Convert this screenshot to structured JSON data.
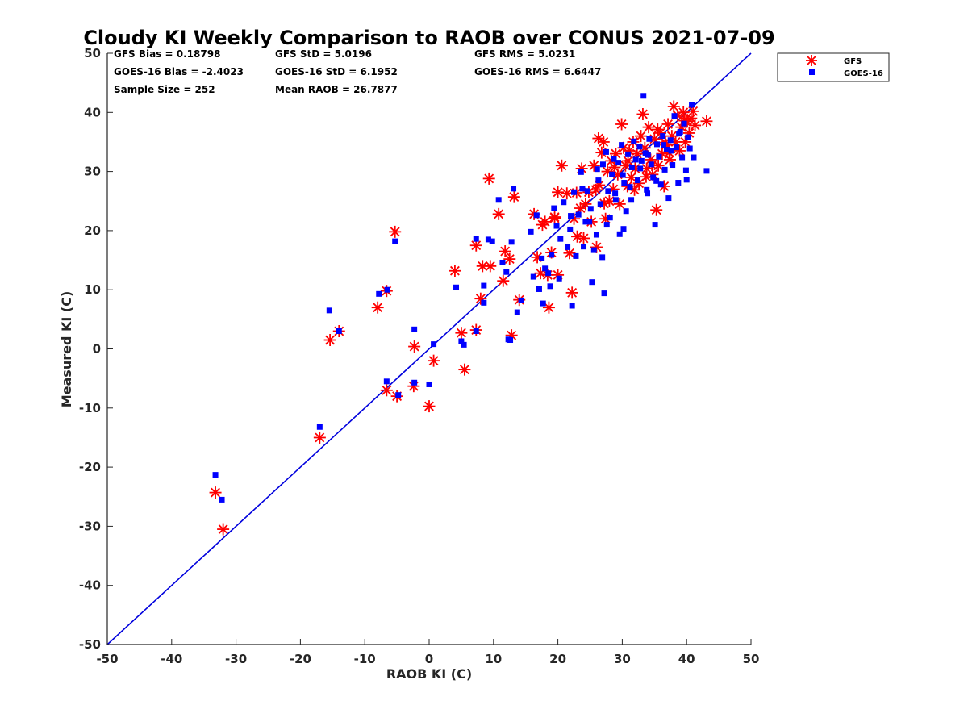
{
  "chart_data": {
    "type": "scatter",
    "title": "Cloudy KI Weekly Comparison to RAOB over CONUS 2021-07-09",
    "xlabel": "RAOB KI (C)",
    "ylabel": "Measured KI (C)",
    "xlim": [
      -50,
      50
    ],
    "ylim": [
      -50,
      50
    ],
    "xticks": [
      "-50",
      "-40",
      "-30",
      "-20",
      "-10",
      "0",
      "10",
      "20",
      "30",
      "40",
      "50"
    ],
    "yticks": [
      "-50",
      "-40",
      "-30",
      "-20",
      "-10",
      "0",
      "10",
      "20",
      "30",
      "40",
      "50"
    ],
    "grid": false,
    "legend_position": "top-right outside",
    "reference_line": {
      "name": "1:1 line",
      "color": "#0000dd",
      "from": [
        -50,
        -50
      ],
      "to": [
        50,
        50
      ]
    },
    "stats": [
      "GFS Bias = 0.18798",
      "GFS StD = 5.0196",
      "GFS RMS = 5.0231",
      "GOES-16 Bias = -2.4023",
      "GOES-16 StD = 6.1952",
      "GOES-16 RMS = 6.6447",
      "Sample Size = 252",
      "Mean RAOB = 26.7877"
    ],
    "series": [
      {
        "name": "GFS",
        "marker": "asterisk",
        "color": "#ff0000",
        "points": [
          [
            -33.2,
            -24.3
          ],
          [
            -32,
            -30.5
          ],
          [
            -17,
            -15
          ],
          [
            -15.4,
            1.5
          ],
          [
            -14,
            3
          ],
          [
            -8,
            7
          ],
          [
            -6.6,
            9.8
          ],
          [
            -6.6,
            -7
          ],
          [
            -5,
            -8
          ],
          [
            -5.3,
            19.8
          ],
          [
            -2.4,
            -6.3
          ],
          [
            -2.3,
            0.4
          ],
          [
            0,
            -9.7
          ],
          [
            0.7,
            -2
          ],
          [
            4,
            13.2
          ],
          [
            5,
            2.7
          ],
          [
            5.5,
            -3.5
          ],
          [
            7.3,
            3.2
          ],
          [
            7.3,
            17.5
          ],
          [
            8,
            8.5
          ],
          [
            8.3,
            14
          ],
          [
            9.3,
            28.8
          ],
          [
            9.5,
            14
          ],
          [
            10.8,
            22.8
          ],
          [
            11.5,
            11.5
          ],
          [
            11.8,
            16.5
          ],
          [
            12.5,
            15.2
          ],
          [
            12.8,
            2.3
          ],
          [
            13.2,
            25.7
          ],
          [
            14,
            8.3
          ],
          [
            16.3,
            22.8
          ],
          [
            16.8,
            15.5
          ],
          [
            17.3,
            12.8
          ],
          [
            17.6,
            21
          ],
          [
            18,
            21.5
          ],
          [
            18.4,
            12.5
          ],
          [
            18.6,
            7
          ],
          [
            19,
            16.3
          ],
          [
            19.5,
            22.3
          ],
          [
            20,
            12.5
          ],
          [
            20,
            26.5
          ],
          [
            20.6,
            31
          ],
          [
            21.4,
            26.3
          ],
          [
            21.8,
            16.2
          ],
          [
            22.2,
            9.5
          ],
          [
            22.5,
            22
          ],
          [
            23,
            19
          ],
          [
            23.7,
            30.5
          ],
          [
            24,
            18.7
          ],
          [
            24.3,
            24.5
          ],
          [
            24.8,
            26.5
          ],
          [
            25.2,
            21.5
          ],
          [
            25.6,
            31
          ],
          [
            26,
            17.2
          ],
          [
            26.4,
            27.7
          ],
          [
            26.8,
            33.2
          ],
          [
            27.1,
            35
          ],
          [
            27.4,
            22
          ],
          [
            27.7,
            30
          ],
          [
            28,
            25
          ],
          [
            28.3,
            31.8
          ],
          [
            28.6,
            27
          ],
          [
            29,
            33
          ],
          [
            29.3,
            29.5
          ],
          [
            29.6,
            24.5
          ],
          [
            29.9,
            38
          ],
          [
            30.2,
            34
          ],
          [
            30.5,
            31
          ],
          [
            30.8,
            27.5
          ],
          [
            31.1,
            33.5
          ],
          [
            31.4,
            29
          ],
          [
            31.7,
            35
          ],
          [
            32,
            30.5
          ],
          [
            32.3,
            33
          ],
          [
            32.6,
            28
          ],
          [
            32.9,
            36
          ],
          [
            33.2,
            39.7
          ],
          [
            33.5,
            34
          ],
          [
            33.8,
            30.5
          ],
          [
            34.1,
            37.5
          ],
          [
            34.4,
            32
          ],
          [
            34.7,
            29.5
          ],
          [
            35,
            35.5
          ],
          [
            35.3,
            23.5
          ],
          [
            35.6,
            31
          ],
          [
            35.9,
            36.5
          ],
          [
            36.2,
            33
          ],
          [
            36.5,
            27.5
          ],
          [
            36.8,
            34.5
          ],
          [
            37.1,
            38
          ],
          [
            37.4,
            32
          ],
          [
            37.7,
            36
          ],
          [
            38,
            41
          ],
          [
            38.3,
            35
          ],
          [
            38.6,
            39.5
          ],
          [
            38.9,
            33.5
          ],
          [
            39.2,
            37.5
          ],
          [
            39.5,
            40
          ],
          [
            39.8,
            35
          ],
          [
            40.1,
            38.5
          ],
          [
            40.4,
            36.5
          ],
          [
            40.7,
            39
          ],
          [
            41,
            40.2
          ],
          [
            41.3,
            37.8
          ],
          [
            43.1,
            38.5
          ],
          [
            26.3,
            35.6
          ],
          [
            28.8,
            30.7
          ],
          [
            30.9,
            31.8
          ],
          [
            34.6,
            31.1
          ],
          [
            36.7,
            34.9
          ],
          [
            23.5,
            23.8
          ],
          [
            25.9,
            26.9
          ],
          [
            27.2,
            24.6
          ],
          [
            19.5,
            22.1
          ],
          [
            22.9,
            26.4
          ],
          [
            31.9,
            26.9
          ],
          [
            33.7,
            29.1
          ],
          [
            37.3,
            33.2
          ],
          [
            39.7,
            38.6
          ],
          [
            35.5,
            37.1
          ]
        ]
      },
      {
        "name": "GOES-16",
        "marker": "square",
        "color": "#0000ff",
        "points": [
          [
            -33.2,
            -21.3
          ],
          [
            -32.2,
            -25.5
          ],
          [
            -17,
            -13.2
          ],
          [
            -15.5,
            6.5
          ],
          [
            -14,
            3
          ],
          [
            -7.8,
            9.3
          ],
          [
            -6.5,
            10
          ],
          [
            -6.6,
            -5.5
          ],
          [
            -5.3,
            18.2
          ],
          [
            -4.8,
            -7.8
          ],
          [
            -2.3,
            3.3
          ],
          [
            -2.3,
            -5.7
          ],
          [
            0,
            -6
          ],
          [
            0.7,
            0.8
          ],
          [
            4.2,
            10.4
          ],
          [
            5,
            1.3
          ],
          [
            5.4,
            0.7
          ],
          [
            7.3,
            3
          ],
          [
            7.3,
            18.6
          ],
          [
            8.5,
            10.7
          ],
          [
            8.5,
            7.8
          ],
          [
            9.2,
            18.5
          ],
          [
            9.8,
            18.2
          ],
          [
            10.8,
            25.2
          ],
          [
            11.4,
            14.6
          ],
          [
            12,
            13
          ],
          [
            12.3,
            1.6
          ],
          [
            12.6,
            1.5
          ],
          [
            12.8,
            18.1
          ],
          [
            13.1,
            27.1
          ],
          [
            13.7,
            6.2
          ],
          [
            14.3,
            8.2
          ],
          [
            15.8,
            19.8
          ],
          [
            16.2,
            12.2
          ],
          [
            16.7,
            22.6
          ],
          [
            17.1,
            10.1
          ],
          [
            17.5,
            15.3
          ],
          [
            17.7,
            7.7
          ],
          [
            18,
            13.6
          ],
          [
            18.5,
            12.8
          ],
          [
            18.8,
            10.6
          ],
          [
            19,
            15.9
          ],
          [
            19.4,
            23.8
          ],
          [
            19.8,
            20.8
          ],
          [
            20.2,
            11.9
          ],
          [
            20.9,
            24.8
          ],
          [
            21.5,
            17.2
          ],
          [
            21.9,
            20.2
          ],
          [
            22.2,
            7.3
          ],
          [
            22.5,
            26.5
          ],
          [
            22.8,
            15.7
          ],
          [
            23.2,
            22.7
          ],
          [
            23.6,
            29.9
          ],
          [
            24,
            17.3
          ],
          [
            24.3,
            21.5
          ],
          [
            24.6,
            26.7
          ],
          [
            25.1,
            23.7
          ],
          [
            25.3,
            11.3
          ],
          [
            25.6,
            16.7
          ],
          [
            26,
            19.3
          ],
          [
            26.3,
            28.5
          ],
          [
            26.6,
            24.5
          ],
          [
            27,
            31.2
          ],
          [
            27.2,
            9.4
          ],
          [
            27.5,
            33.3
          ],
          [
            27.8,
            26.7
          ],
          [
            28.1,
            22.2
          ],
          [
            28.4,
            29.5
          ],
          [
            28.7,
            32.1
          ],
          [
            29,
            25.2
          ],
          [
            29.4,
            31.5
          ],
          [
            29.6,
            19.4
          ],
          [
            29.9,
            34.5
          ],
          [
            30.3,
            28.1
          ],
          [
            30.6,
            23.3
          ],
          [
            30.9,
            32.9
          ],
          [
            31.2,
            27.4
          ],
          [
            31.5,
            30.7
          ],
          [
            31.8,
            35.1
          ],
          [
            32.1,
            32
          ],
          [
            32.4,
            28.5
          ],
          [
            32.7,
            34.2
          ],
          [
            33,
            31.8
          ],
          [
            33.3,
            42.8
          ],
          [
            33.6,
            33.1
          ],
          [
            33.9,
            26.3
          ],
          [
            34.2,
            35.5
          ],
          [
            34.5,
            31.2
          ],
          [
            34.8,
            29
          ],
          [
            35.1,
            21
          ],
          [
            35.4,
            34.6
          ],
          [
            35.7,
            32.5
          ],
          [
            36,
            27.8
          ],
          [
            36.3,
            36
          ],
          [
            36.6,
            30.3
          ],
          [
            36.9,
            33.7
          ],
          [
            37.2,
            25.5
          ],
          [
            37.5,
            35.3
          ],
          [
            37.8,
            31.1
          ],
          [
            38.1,
            39.4
          ],
          [
            38.4,
            34.1
          ],
          [
            38.7,
            28.1
          ],
          [
            39,
            36.7
          ],
          [
            39.3,
            32.4
          ],
          [
            39.6,
            38.1
          ],
          [
            39.9,
            30.2
          ],
          [
            40.2,
            35.8
          ],
          [
            40.5,
            33.9
          ],
          [
            40.8,
            41.3
          ],
          [
            41.1,
            32.4
          ],
          [
            43.1,
            30.1
          ],
          [
            23.8,
            27.1
          ],
          [
            24.9,
            21.5
          ],
          [
            26.1,
            30.4
          ],
          [
            27.6,
            21
          ],
          [
            28.9,
            26.3
          ],
          [
            30.1,
            29.4
          ],
          [
            31.4,
            25.2
          ],
          [
            32.8,
            30.5
          ],
          [
            34,
            32.8
          ],
          [
            35.3,
            28.4
          ],
          [
            36.4,
            34.5
          ],
          [
            37.6,
            33.5
          ],
          [
            38.8,
            36.4
          ],
          [
            40,
            28.6
          ],
          [
            22,
            22.5
          ],
          [
            20.4,
            18.6
          ],
          [
            26.9,
            15.5
          ],
          [
            30.2,
            20.3
          ],
          [
            33.8,
            26.9
          ]
        ]
      }
    ]
  }
}
